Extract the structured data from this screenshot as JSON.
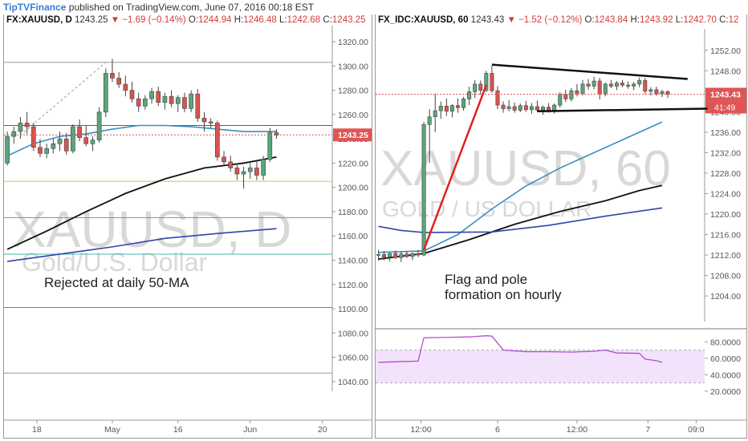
{
  "header": {
    "brand": "TipTVFinance",
    "text": " published on TradingView.com, June 07, 2016 00:18 EST"
  },
  "colors": {
    "up": "#5aa57a",
    "down": "#d9534f",
    "ma_blue": "#3c8dbc",
    "ma_black": "#111111",
    "ma_navy": "#3344aa",
    "pole": "#e02020",
    "rsi": "#b04fcf",
    "rsi_band": "#f3e2fb"
  },
  "chart_data": [
    {
      "type": "candlestick",
      "symbol": "FX:XAUUSD, D",
      "ohlc_header": {
        "last": "1243.25",
        "change": "▼ −1.69 (−0.14%)",
        "o_label": "O:",
        "o": "1244.94",
        "h_label": "H:",
        "h": "1246.48",
        "l_label": "L:",
        "l": "1242.68",
        "c_label": "C:",
        "c": "1243.25"
      },
      "watermark": {
        "symbol": "XAUUSD, D",
        "description": "Gold/U.S. Dollar"
      },
      "annotation": "Rejected at daily 50-MA",
      "ylim": [
        1032,
        1324
      ],
      "y_ticks": [
        "1320.00",
        "1300.00",
        "1280.00",
        "1260.00",
        "1240.00",
        "1220.00",
        "1200.00",
        "1180.00",
        "1160.00",
        "1140.00",
        "1120.00",
        "1100.00",
        "1080.00",
        "1060.00",
        "1040.00"
      ],
      "y_tick_values": [
        1320,
        1300,
        1280,
        1260,
        1240,
        1220,
        1200,
        1180,
        1160,
        1140,
        1120,
        1100,
        1080,
        1060,
        1040
      ],
      "x_ticks": [
        "18",
        "May",
        "16",
        "Jun",
        "20"
      ],
      "x_tick_index": [
        4.5,
        16,
        26,
        37,
        48
      ],
      "last_price_label": "1243.25",
      "last_price": 1243.25,
      "n_slots": 50,
      "horizontal_lines": [
        {
          "price": 1303,
          "color": "#9a9a9a"
        },
        {
          "price": 1251,
          "color": "#c0392b"
        },
        {
          "price": 1205,
          "color": "#c8c860"
        },
        {
          "price": 1175,
          "color": "#5cb85c"
        },
        {
          "price": 1145,
          "color": "#45b8ac"
        },
        {
          "price": 1101,
          "color": "#3c8dbc"
        },
        {
          "price": 1047,
          "color": "#9a9a9a"
        }
      ],
      "dashed_trend": [
        [
          2,
          1243
        ],
        [
          15,
          1303
        ]
      ],
      "candles": [
        {
          "o": 1220,
          "h": 1246,
          "l": 1218,
          "c": 1242
        },
        {
          "o": 1242,
          "h": 1250,
          "l": 1236,
          "c": 1246
        },
        {
          "o": 1246,
          "h": 1258,
          "l": 1240,
          "c": 1253
        },
        {
          "o": 1253,
          "h": 1262,
          "l": 1244,
          "c": 1250
        },
        {
          "o": 1250,
          "h": 1253,
          "l": 1230,
          "c": 1233
        },
        {
          "o": 1233,
          "h": 1240,
          "l": 1225,
          "c": 1228
        },
        {
          "o": 1228,
          "h": 1236,
          "l": 1224,
          "c": 1232
        },
        {
          "o": 1232,
          "h": 1240,
          "l": 1228,
          "c": 1236
        },
        {
          "o": 1236,
          "h": 1246,
          "l": 1230,
          "c": 1240
        },
        {
          "o": 1240,
          "h": 1245,
          "l": 1227,
          "c": 1230
        },
        {
          "o": 1230,
          "h": 1252,
          "l": 1228,
          "c": 1250
        },
        {
          "o": 1250,
          "h": 1256,
          "l": 1238,
          "c": 1241
        },
        {
          "o": 1241,
          "h": 1251,
          "l": 1234,
          "c": 1236
        },
        {
          "o": 1236,
          "h": 1242,
          "l": 1230,
          "c": 1239
        },
        {
          "o": 1239,
          "h": 1266,
          "l": 1237,
          "c": 1262
        },
        {
          "o": 1262,
          "h": 1298,
          "l": 1258,
          "c": 1294
        },
        {
          "o": 1294,
          "h": 1306,
          "l": 1287,
          "c": 1290
        },
        {
          "o": 1290,
          "h": 1295,
          "l": 1282,
          "c": 1285
        },
        {
          "o": 1285,
          "h": 1292,
          "l": 1275,
          "c": 1280
        },
        {
          "o": 1280,
          "h": 1287,
          "l": 1270,
          "c": 1273
        },
        {
          "o": 1273,
          "h": 1278,
          "l": 1262,
          "c": 1267
        },
        {
          "o": 1267,
          "h": 1276,
          "l": 1264,
          "c": 1273
        },
        {
          "o": 1273,
          "h": 1282,
          "l": 1269,
          "c": 1279
        },
        {
          "o": 1279,
          "h": 1283,
          "l": 1267,
          "c": 1270
        },
        {
          "o": 1270,
          "h": 1278,
          "l": 1264,
          "c": 1275
        },
        {
          "o": 1275,
          "h": 1280,
          "l": 1266,
          "c": 1269
        },
        {
          "o": 1269,
          "h": 1276,
          "l": 1262,
          "c": 1274
        },
        {
          "o": 1274,
          "h": 1278,
          "l": 1262,
          "c": 1265
        },
        {
          "o": 1265,
          "h": 1280,
          "l": 1262,
          "c": 1277
        },
        {
          "o": 1277,
          "h": 1281,
          "l": 1254,
          "c": 1257
        },
        {
          "o": 1257,
          "h": 1262,
          "l": 1246,
          "c": 1254
        },
        {
          "o": 1254,
          "h": 1257,
          "l": 1249,
          "c": 1253
        },
        {
          "o": 1253,
          "h": 1255,
          "l": 1222,
          "c": 1225
        },
        {
          "o": 1225,
          "h": 1230,
          "l": 1218,
          "c": 1221
        },
        {
          "o": 1221,
          "h": 1226,
          "l": 1213,
          "c": 1216
        },
        {
          "o": 1216,
          "h": 1220,
          "l": 1206,
          "c": 1211
        },
        {
          "o": 1211,
          "h": 1217,
          "l": 1199,
          "c": 1213
        },
        {
          "o": 1213,
          "h": 1220,
          "l": 1207,
          "c": 1216
        },
        {
          "o": 1216,
          "h": 1222,
          "l": 1206,
          "c": 1210
        },
        {
          "o": 1210,
          "h": 1226,
          "l": 1206,
          "c": 1223
        },
        {
          "o": 1223,
          "h": 1249,
          "l": 1221,
          "c": 1245
        },
        {
          "o": 1245,
          "h": 1248,
          "l": 1240,
          "c": 1243
        }
      ],
      "moving_averages": [
        {
          "name": "",
          "color": "#3c8dbc",
          "points": [
            [
              0,
              1226
            ],
            [
              4,
              1236
            ],
            [
              8,
              1242
            ],
            [
              12,
              1244
            ],
            [
              16,
              1248
            ],
            [
              20,
              1251
            ],
            [
              24,
              1251
            ],
            [
              28,
              1250
            ],
            [
              32,
              1248
            ],
            [
              36,
              1246
            ],
            [
              40,
              1246
            ],
            [
              41,
              1246
            ]
          ]
        },
        {
          "name": "",
          "color": "#111111",
          "points": [
            [
              0,
              1149
            ],
            [
              6,
              1164
            ],
            [
              12,
              1180
            ],
            [
              18,
              1195
            ],
            [
              24,
              1207
            ],
            [
              30,
              1216
            ],
            [
              36,
              1220
            ],
            [
              41,
              1225
            ]
          ]
        },
        {
          "name": "",
          "color": "#3344aa",
          "points": [
            [
              0,
              1139
            ],
            [
              8,
              1145
            ],
            [
              16,
              1151
            ],
            [
              24,
              1158
            ],
            [
              32,
              1162
            ],
            [
              41,
              1166
            ]
          ]
        }
      ]
    },
    {
      "type": "candlestick",
      "symbol": "FX_IDC:XAUUSD, 60",
      "ohlc_header": {
        "last": "1243.43",
        "change": "▼ −1.52 (−0.12%)",
        "o_label": "O:",
        "o": "1243.84",
        "h_label": "H:",
        "h": "1243.92",
        "l_label": "L:",
        "l": "1242.70",
        "c_label": "C:",
        "c": "12"
      },
      "watermark": {
        "symbol": "XAUUSD, 60",
        "description": "GOLD / US DOLLAR"
      },
      "annotation_lines": [
        "Flag and pole",
        "formation on hourly"
      ],
      "ylim": [
        1199,
        1254
      ],
      "y_ticks": [
        "1252.00",
        "1248.00",
        "1244.00",
        "1240.00",
        "1236.00",
        "1232.00",
        "1228.00",
        "1224.00",
        "1220.00",
        "1216.00",
        "1212.00",
        "1208.00",
        "1204.00"
      ],
      "y_tick_values": [
        1252,
        1248,
        1244,
        1240,
        1236,
        1232,
        1228,
        1224,
        1220,
        1216,
        1212,
        1208,
        1204
      ],
      "x_ticks": [
        "12:00",
        "6",
        "12:00",
        "7",
        "09:0"
      ],
      "x_tick_index": [
        7.5,
        21,
        35,
        47.5,
        56
      ],
      "last_price_label": "1243.43",
      "last_price": 1243.43,
      "timer_label": "41:49",
      "n_slots": 58,
      "pole": [
        [
          8,
          1213
        ],
        [
          19,
          1245.2
        ]
      ],
      "flag_upper": [
        [
          20,
          1249.2
        ],
        [
          54.5,
          1246.4
        ]
      ],
      "flag_lower": [
        [
          28,
          1240.1
        ],
        [
          58,
          1240.6
        ]
      ],
      "candles": [
        {
          "o": 1212.0,
          "h": 1213.0,
          "l": 1210.9,
          "c": 1212.1
        },
        {
          "o": 1212.1,
          "h": 1212.8,
          "l": 1211.0,
          "c": 1211.6
        },
        {
          "o": 1211.6,
          "h": 1212.4,
          "l": 1210.8,
          "c": 1212.3
        },
        {
          "o": 1212.3,
          "h": 1212.9,
          "l": 1211.2,
          "c": 1211.5
        },
        {
          "o": 1211.5,
          "h": 1212.6,
          "l": 1210.6,
          "c": 1212.2
        },
        {
          "o": 1212.2,
          "h": 1212.8,
          "l": 1211.4,
          "c": 1211.7
        },
        {
          "o": 1211.7,
          "h": 1212.5,
          "l": 1211.0,
          "c": 1212.3
        },
        {
          "o": 1212.3,
          "h": 1213.0,
          "l": 1211.6,
          "c": 1212.0
        },
        {
          "o": 1212.0,
          "h": 1238.0,
          "l": 1211.8,
          "c": 1237.5
        },
        {
          "o": 1237.5,
          "h": 1240.5,
          "l": 1230.0,
          "c": 1239.0
        },
        {
          "o": 1239.0,
          "h": 1243.5,
          "l": 1236.0,
          "c": 1240.2
        },
        {
          "o": 1240.2,
          "h": 1242.0,
          "l": 1238.6,
          "c": 1241.1
        },
        {
          "o": 1241.1,
          "h": 1242.6,
          "l": 1239.2,
          "c": 1240.1
        },
        {
          "o": 1240.1,
          "h": 1241.5,
          "l": 1238.9,
          "c": 1241.2
        },
        {
          "o": 1241.2,
          "h": 1242.6,
          "l": 1239.8,
          "c": 1240.8
        },
        {
          "o": 1240.8,
          "h": 1242.9,
          "l": 1240.2,
          "c": 1242.5
        },
        {
          "o": 1242.5,
          "h": 1244.9,
          "l": 1241.3,
          "c": 1243.9
        },
        {
          "o": 1243.9,
          "h": 1246.2,
          "l": 1242.7,
          "c": 1245.4
        },
        {
          "o": 1245.4,
          "h": 1246.1,
          "l": 1243.3,
          "c": 1244.2
        },
        {
          "o": 1244.2,
          "h": 1248.0,
          "l": 1243.8,
          "c": 1247.5
        },
        {
          "o": 1247.5,
          "h": 1249.0,
          "l": 1243.7,
          "c": 1244.1
        },
        {
          "o": 1244.1,
          "h": 1245.0,
          "l": 1240.5,
          "c": 1241.3
        },
        {
          "o": 1241.3,
          "h": 1242.0,
          "l": 1239.8,
          "c": 1240.6
        },
        {
          "o": 1240.6,
          "h": 1242.3,
          "l": 1240.1,
          "c": 1241.0
        },
        {
          "o": 1241.0,
          "h": 1241.8,
          "l": 1239.8,
          "c": 1240.3
        },
        {
          "o": 1240.3,
          "h": 1241.6,
          "l": 1239.9,
          "c": 1241.2
        },
        {
          "o": 1241.2,
          "h": 1242.1,
          "l": 1240.0,
          "c": 1240.4
        },
        {
          "o": 1240.4,
          "h": 1241.7,
          "l": 1239.6,
          "c": 1241.0
        },
        {
          "o": 1241.0,
          "h": 1242.2,
          "l": 1240.0,
          "c": 1240.3
        },
        {
          "o": 1240.3,
          "h": 1241.2,
          "l": 1239.4,
          "c": 1240.9
        },
        {
          "o": 1240.9,
          "h": 1241.7,
          "l": 1239.8,
          "c": 1240.0
        },
        {
          "o": 1240.0,
          "h": 1241.6,
          "l": 1239.6,
          "c": 1241.3
        },
        {
          "o": 1241.3,
          "h": 1243.8,
          "l": 1240.8,
          "c": 1243.4
        },
        {
          "o": 1243.4,
          "h": 1244.3,
          "l": 1241.9,
          "c": 1242.5
        },
        {
          "o": 1242.5,
          "h": 1244.6,
          "l": 1242.0,
          "c": 1244.1
        },
        {
          "o": 1244.1,
          "h": 1245.4,
          "l": 1243.0,
          "c": 1243.6
        },
        {
          "o": 1243.6,
          "h": 1246.2,
          "l": 1243.2,
          "c": 1245.4
        },
        {
          "o": 1245.4,
          "h": 1246.4,
          "l": 1244.3,
          "c": 1245.0
        },
        {
          "o": 1245.0,
          "h": 1246.8,
          "l": 1244.4,
          "c": 1246.0
        },
        {
          "o": 1246.0,
          "h": 1246.6,
          "l": 1242.4,
          "c": 1243.6
        },
        {
          "o": 1243.6,
          "h": 1245.7,
          "l": 1243.0,
          "c": 1245.4
        },
        {
          "o": 1245.4,
          "h": 1246.2,
          "l": 1244.6,
          "c": 1245.0
        },
        {
          "o": 1245.0,
          "h": 1246.0,
          "l": 1244.2,
          "c": 1245.6
        },
        {
          "o": 1245.6,
          "h": 1246.2,
          "l": 1244.8,
          "c": 1245.2
        },
        {
          "o": 1245.2,
          "h": 1245.9,
          "l": 1244.5,
          "c": 1245.0
        },
        {
          "o": 1245.0,
          "h": 1245.8,
          "l": 1244.2,
          "c": 1245.4
        },
        {
          "o": 1245.4,
          "h": 1246.7,
          "l": 1244.8,
          "c": 1246.1
        },
        {
          "o": 1246.1,
          "h": 1246.6,
          "l": 1243.5,
          "c": 1244.0
        },
        {
          "o": 1244.0,
          "h": 1244.8,
          "l": 1243.2,
          "c": 1244.3
        },
        {
          "o": 1244.3,
          "h": 1244.9,
          "l": 1243.1,
          "c": 1243.5
        },
        {
          "o": 1243.5,
          "h": 1244.3,
          "l": 1242.9,
          "c": 1243.9
        },
        {
          "o": 1243.9,
          "h": 1244.2,
          "l": 1242.7,
          "c": 1243.4
        }
      ],
      "moving_averages": [
        {
          "name": "",
          "color": "#3c8dbc",
          "points": [
            [
              0,
              1212.5
            ],
            [
              8,
              1212.8
            ],
            [
              14,
              1216
            ],
            [
              20,
              1221
            ],
            [
              26,
              1225.5
            ],
            [
              32,
              1229
            ],
            [
              38,
              1232
            ],
            [
              44,
              1235
            ],
            [
              50,
              1238
            ]
          ]
        },
        {
          "name": "",
          "color": "#111111",
          "points": [
            [
              0,
              1211.2
            ],
            [
              8,
              1212.3
            ],
            [
              16,
              1215
            ],
            [
              24,
              1218
            ],
            [
              32,
              1220.5
            ],
            [
              40,
              1222.6
            ],
            [
              46,
              1224.6
            ],
            [
              50,
              1225.6
            ]
          ]
        },
        {
          "name": "",
          "color": "#3344aa",
          "points": [
            [
              0,
              1217.6
            ],
            [
              4,
              1216.8
            ],
            [
              8,
              1216.4
            ],
            [
              20,
              1216.5
            ],
            [
              30,
              1217.8
            ],
            [
              40,
              1219.6
            ],
            [
              50,
              1221.2
            ]
          ]
        }
      ],
      "rsi": {
        "y_ticks": [
          "80.0000",
          "60.0000",
          "40.0000",
          "20.0000"
        ],
        "y_tick_values": [
          80,
          60,
          40,
          20
        ],
        "ylim": [
          10,
          95
        ],
        "band": [
          30,
          70
        ],
        "line": [
          [
            0,
            55
          ],
          [
            4,
            56
          ],
          [
            7,
            56.5
          ],
          [
            8,
            85
          ],
          [
            12,
            85.5
          ],
          [
            16,
            86
          ],
          [
            19,
            87.5
          ],
          [
            20,
            87
          ],
          [
            22,
            70
          ],
          [
            26,
            68
          ],
          [
            30,
            68
          ],
          [
            34,
            67.5
          ],
          [
            38,
            68.5
          ],
          [
            40,
            70
          ],
          [
            42,
            66.5
          ],
          [
            46,
            66
          ],
          [
            47,
            59
          ],
          [
            49,
            57
          ],
          [
            50,
            55
          ]
        ]
      }
    }
  ]
}
